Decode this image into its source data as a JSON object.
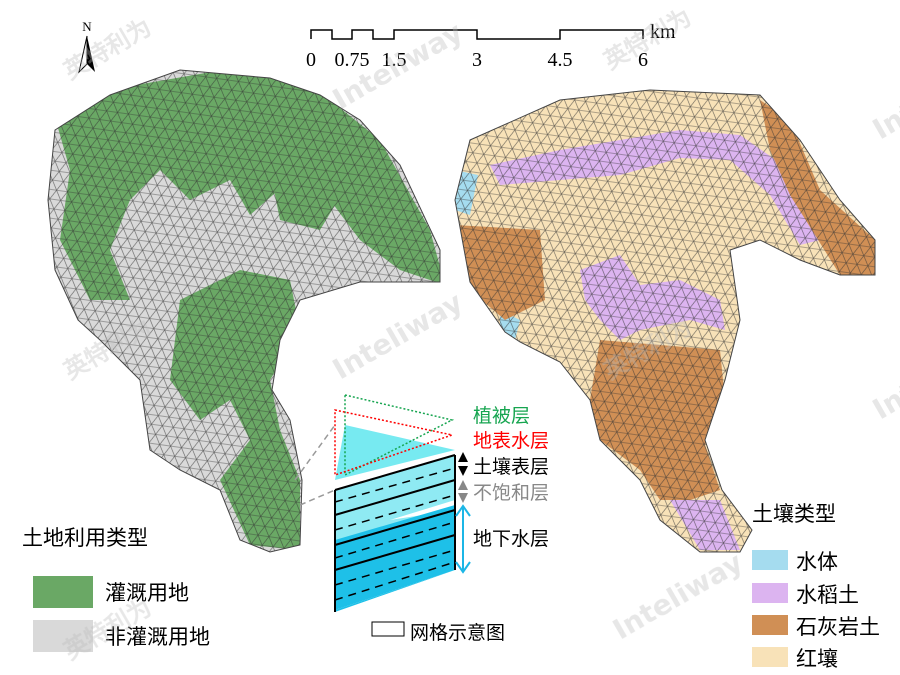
{
  "north_arrow": {
    "label": "N"
  },
  "scale_bar": {
    "unit": "km",
    "ticks": [
      "0",
      "0.75",
      "1.5",
      "3",
      "4.5",
      "6"
    ]
  },
  "landuse_legend": {
    "title": "土地利用类型",
    "items": [
      {
        "label": "灌溉用地",
        "color": "#6aa865"
      },
      {
        "label": "非灌溉用地",
        "color": "#d9d9d9"
      }
    ]
  },
  "soil_legend": {
    "title": "土壤类型",
    "items": [
      {
        "label": "水体",
        "color": "#a5dcef"
      },
      {
        "label": "水稻土",
        "color": "#dcb4f0"
      },
      {
        "label": "石灰岩土",
        "color": "#d08f55"
      },
      {
        "label": "红壤",
        "color": "#f8e2b8"
      }
    ]
  },
  "grid_diagram": {
    "layers": [
      {
        "label": "植被层",
        "color": "#17a550"
      },
      {
        "label": "地表水层",
        "color": "#ff0000"
      },
      {
        "label": "土壤表层",
        "color": "#000000"
      },
      {
        "label": "不饱和层",
        "color": "#808080"
      },
      {
        "label": "地下水层",
        "color": "#000000"
      }
    ],
    "caption": "网格示意图"
  },
  "watermark": {
    "cn": "英特利为",
    "en": "Inteliway"
  }
}
